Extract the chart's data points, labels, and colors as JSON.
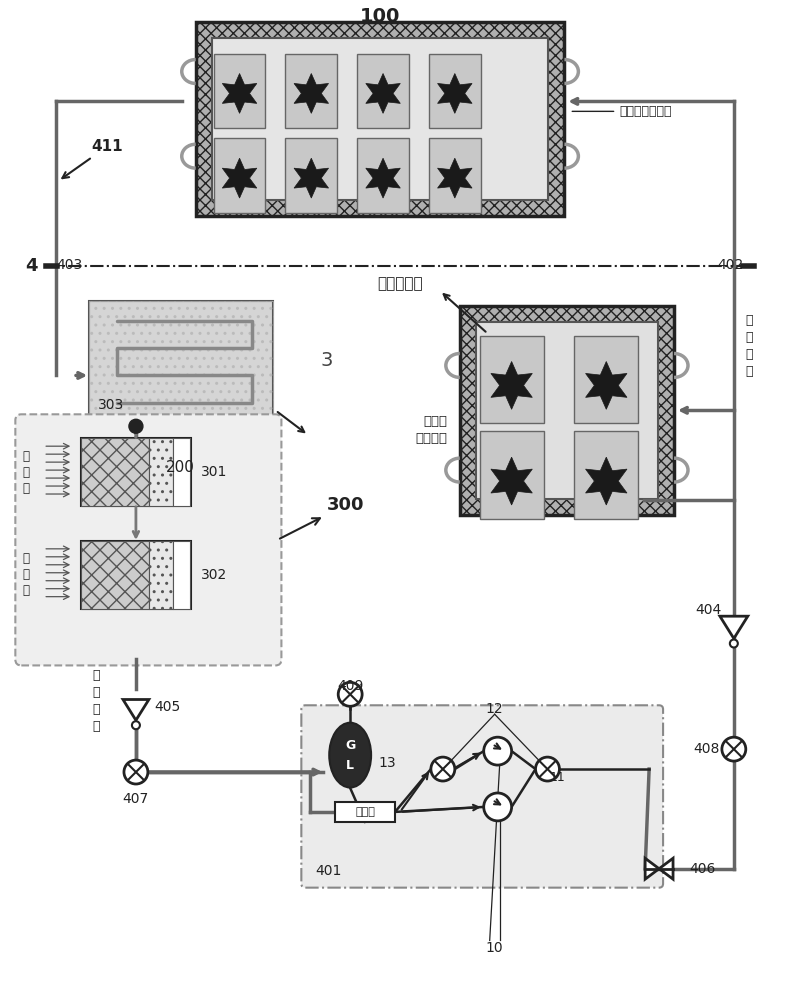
{
  "bg_color": "#ffffff",
  "label_100": "100",
  "label_200": "200",
  "label_300": "300",
  "label_3": "3",
  "label_4": "4",
  "label_411": "411",
  "label_402": "402",
  "label_403": "403",
  "label_401": "401",
  "label_301": "301",
  "label_302": "302",
  "label_303": "303",
  "label_405": "405",
  "label_407": "407",
  "label_409": "409",
  "label_404": "404",
  "label_408": "408",
  "label_406": "406",
  "label_12": "12",
  "label_13": "13",
  "label_10": "10",
  "label_11": "11",
  "text_liang_qi_fen": "两器分离面",
  "text_sheng_qi": "上升器仪器设备",
  "text_zhe_qi": "着陆器\n仪器设备",
  "text_shui_zheng_qi_1": "水\n蒸\n气",
  "text_shui_zheng_qi_2": "水\n蒸\n气",
  "text_jiao_re": "较\n热\n工\n质",
  "text_jiao_leng": "较\n冷\n工\n质",
  "text_guo_lv": "过滤器",
  "text_G": "G",
  "text_L": "L",
  "pipe_color": "#666666",
  "pipe_lw": 2.5,
  "dark_color": "#222222",
  "mid_gray": "#999999",
  "light_gray": "#cccccc",
  "box_gray": "#d0d0d0",
  "hatch_gray": "#b0b0b0"
}
